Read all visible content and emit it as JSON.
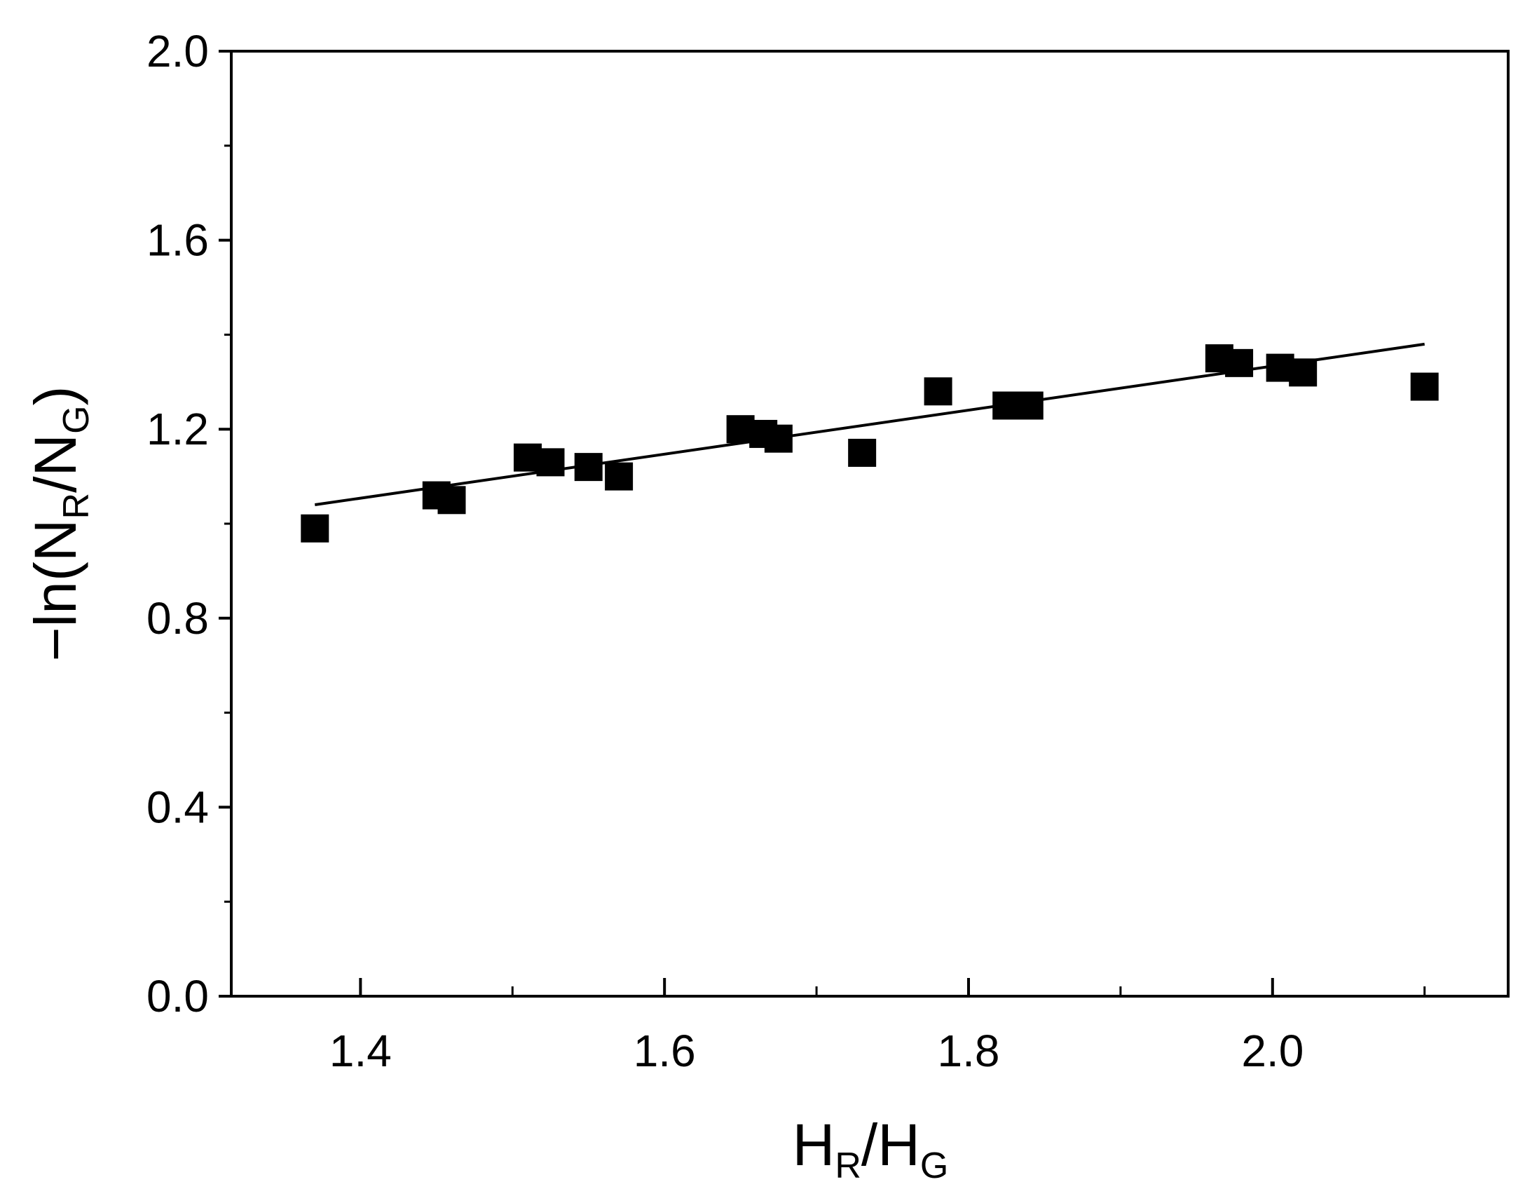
{
  "chart_data": {
    "type": "scatter",
    "xlabel": {
      "main1": "H",
      "sub1": "R",
      "slash": "/",
      "main2": "H",
      "sub2": "G"
    },
    "ylabel": {
      "prefix": "−ln(",
      "main1": "N",
      "sub1": "R",
      "slash": "/",
      "main2": "N",
      "sub2": "G",
      "suffix": ")"
    },
    "xlim": [
      1.315,
      2.155
    ],
    "ylim": [
      0.0,
      2.0
    ],
    "xticks": [
      {
        "value": 1.4,
        "label": "1.4"
      },
      {
        "value": 1.6,
        "label": "1.6"
      },
      {
        "value": 1.8,
        "label": "1.8"
      },
      {
        "value": 2.0,
        "label": "2.0"
      }
    ],
    "xminor": [
      1.5,
      1.7,
      1.9,
      2.1
    ],
    "yticks": [
      {
        "value": 0.0,
        "label": "0.0"
      },
      {
        "value": 0.4,
        "label": "0.4"
      },
      {
        "value": 0.8,
        "label": "0.8"
      },
      {
        "value": 1.2,
        "label": "1.2"
      },
      {
        "value": 1.6,
        "label": "1.6"
      },
      {
        "value": 2.0,
        "label": "2.0"
      }
    ],
    "yminor": [
      0.2,
      0.6,
      1.0,
      1.4,
      1.8
    ],
    "grid": false,
    "series": [
      {
        "marker": "square",
        "color": "#000000",
        "points": [
          {
            "x": 1.37,
            "y": 0.99
          },
          {
            "x": 1.45,
            "y": 1.06
          },
          {
            "x": 1.46,
            "y": 1.05
          },
          {
            "x": 1.51,
            "y": 1.14
          },
          {
            "x": 1.525,
            "y": 1.13
          },
          {
            "x": 1.55,
            "y": 1.12
          },
          {
            "x": 1.57,
            "y": 1.1
          },
          {
            "x": 1.65,
            "y": 1.2
          },
          {
            "x": 1.665,
            "y": 1.19
          },
          {
            "x": 1.675,
            "y": 1.18
          },
          {
            "x": 1.73,
            "y": 1.15
          },
          {
            "x": 1.78,
            "y": 1.28
          },
          {
            "x": 1.825,
            "y": 1.25
          },
          {
            "x": 1.84,
            "y": 1.25
          },
          {
            "x": 1.965,
            "y": 1.35
          },
          {
            "x": 1.978,
            "y": 1.34
          },
          {
            "x": 2.005,
            "y": 1.33
          },
          {
            "x": 2.02,
            "y": 1.32
          },
          {
            "x": 2.1,
            "y": 1.29
          }
        ]
      }
    ],
    "fit_line": {
      "x": [
        1.37,
        2.1
      ],
      "y": [
        1.04,
        1.38
      ],
      "color": "#000000"
    }
  }
}
